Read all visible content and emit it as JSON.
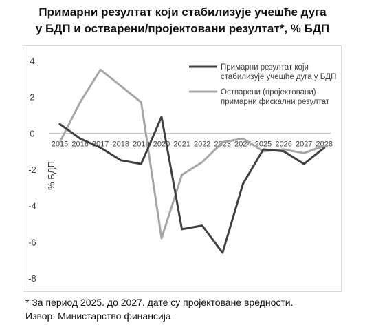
{
  "title_lines": [
    "Примарни резултат који стабилизује учешће дуга",
    "у БДП и остварени/пројектовани резултат*, % БДП"
  ],
  "footnote": "* За период 2025. до 2027. дате су пројектоване вредности.",
  "source": "Извор: Министарство финансија",
  "chart_data": {
    "type": "line",
    "x": [
      "2015",
      "2016",
      "2017",
      "2018",
      "2019",
      "2020",
      "2021",
      "2022",
      "2023",
      "2024",
      "2025",
      "2026",
      "2027",
      "2028"
    ],
    "ylabel": "% БДП",
    "xlabel": "",
    "ylim": [
      -8,
      4
    ],
    "yticks": [
      4,
      2,
      0,
      -2,
      -4,
      -6,
      -8
    ],
    "grid": false,
    "legend_position": "top-right",
    "series": [
      {
        "name": "Примарни резултат који стабилизује учешће дуга у БДП",
        "name_lines": [
          "Примарни резултат који",
          "стабилизује учешће дуга у БДП"
        ],
        "color": "#404040",
        "values": [
          0.5,
          -0.3,
          -0.8,
          -1.5,
          -1.7,
          0.9,
          -5.3,
          -5.1,
          -6.6,
          -2.8,
          -0.9,
          -1.0,
          -1.7,
          -0.8
        ]
      },
      {
        "name": "Остварени (пројектовани) примарни фискални резултат",
        "name_lines": [
          "Остварени (пројектовани)",
          "примарни фискални резултат"
        ],
        "color": "#a6a6a6",
        "values": [
          -0.5,
          1.7,
          3.5,
          2.6,
          1.7,
          -5.8,
          -2.3,
          -1.6,
          -0.5,
          -0.3,
          -1.0,
          -0.9,
          -1.1,
          -0.7
        ]
      }
    ]
  }
}
